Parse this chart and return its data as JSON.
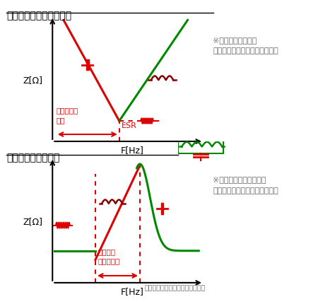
{
  "title1": "コンデンサの周波数特性",
  "title2": "コイルの周波数特性",
  "ylabel": "Z[Ω]",
  "xlabel": "F[Hz]",
  "note1": "※コンデンサとして\n　機能する領域で使用します。",
  "note2": "※インダクタンスとして\n　機能する領域で使用します。",
  "note3": "（トロイダルコイルの代表特性）",
  "label_cap_region": "コンデンサ\n領域",
  "label_esr": "ESR",
  "label_ind_region": "インダク\nタンス領域",
  "red": "#dd0000",
  "green": "#008800",
  "dark_red": "#880000",
  "text_color": "#666666",
  "bg_color": "#ffffff"
}
